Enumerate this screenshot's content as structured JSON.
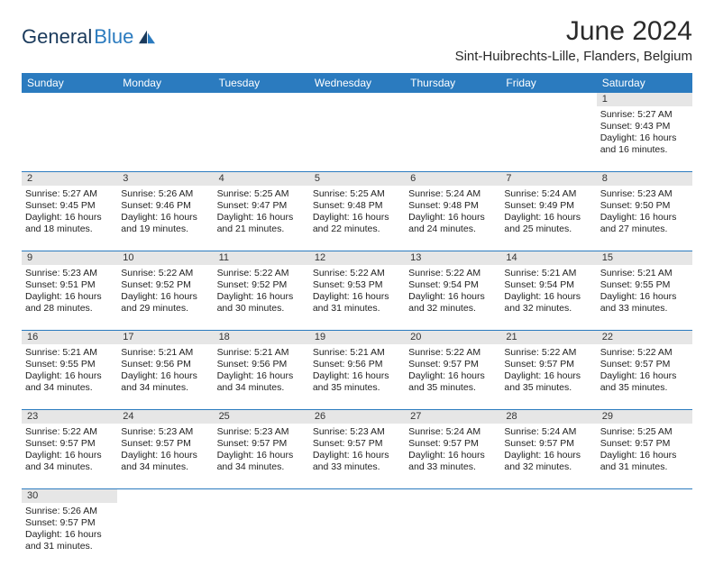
{
  "logo": {
    "part1": "General",
    "part2": "Blue"
  },
  "title": "June 2024",
  "location": "Sint-Huibrechts-Lille, Flanders, Belgium",
  "colors": {
    "header_bg": "#2b7bbf",
    "header_text": "#ffffff",
    "daynum_bg": "#e6e6e6",
    "divider": "#2b7bbf"
  },
  "weekdays": [
    "Sunday",
    "Monday",
    "Tuesday",
    "Wednesday",
    "Thursday",
    "Friday",
    "Saturday"
  ],
  "weeks": [
    [
      {
        "n": "",
        "lines": []
      },
      {
        "n": "",
        "lines": []
      },
      {
        "n": "",
        "lines": []
      },
      {
        "n": "",
        "lines": []
      },
      {
        "n": "",
        "lines": []
      },
      {
        "n": "",
        "lines": []
      },
      {
        "n": "1",
        "lines": [
          "Sunrise: 5:27 AM",
          "Sunset: 9:43 PM",
          "Daylight: 16 hours",
          "and 16 minutes."
        ]
      }
    ],
    [
      {
        "n": "2",
        "lines": [
          "Sunrise: 5:27 AM",
          "Sunset: 9:45 PM",
          "Daylight: 16 hours",
          "and 18 minutes."
        ]
      },
      {
        "n": "3",
        "lines": [
          "Sunrise: 5:26 AM",
          "Sunset: 9:46 PM",
          "Daylight: 16 hours",
          "and 19 minutes."
        ]
      },
      {
        "n": "4",
        "lines": [
          "Sunrise: 5:25 AM",
          "Sunset: 9:47 PM",
          "Daylight: 16 hours",
          "and 21 minutes."
        ]
      },
      {
        "n": "5",
        "lines": [
          "Sunrise: 5:25 AM",
          "Sunset: 9:48 PM",
          "Daylight: 16 hours",
          "and 22 minutes."
        ]
      },
      {
        "n": "6",
        "lines": [
          "Sunrise: 5:24 AM",
          "Sunset: 9:48 PM",
          "Daylight: 16 hours",
          "and 24 minutes."
        ]
      },
      {
        "n": "7",
        "lines": [
          "Sunrise: 5:24 AM",
          "Sunset: 9:49 PM",
          "Daylight: 16 hours",
          "and 25 minutes."
        ]
      },
      {
        "n": "8",
        "lines": [
          "Sunrise: 5:23 AM",
          "Sunset: 9:50 PM",
          "Daylight: 16 hours",
          "and 27 minutes."
        ]
      }
    ],
    [
      {
        "n": "9",
        "lines": [
          "Sunrise: 5:23 AM",
          "Sunset: 9:51 PM",
          "Daylight: 16 hours",
          "and 28 minutes."
        ]
      },
      {
        "n": "10",
        "lines": [
          "Sunrise: 5:22 AM",
          "Sunset: 9:52 PM",
          "Daylight: 16 hours",
          "and 29 minutes."
        ]
      },
      {
        "n": "11",
        "lines": [
          "Sunrise: 5:22 AM",
          "Sunset: 9:52 PM",
          "Daylight: 16 hours",
          "and 30 minutes."
        ]
      },
      {
        "n": "12",
        "lines": [
          "Sunrise: 5:22 AM",
          "Sunset: 9:53 PM",
          "Daylight: 16 hours",
          "and 31 minutes."
        ]
      },
      {
        "n": "13",
        "lines": [
          "Sunrise: 5:22 AM",
          "Sunset: 9:54 PM",
          "Daylight: 16 hours",
          "and 32 minutes."
        ]
      },
      {
        "n": "14",
        "lines": [
          "Sunrise: 5:21 AM",
          "Sunset: 9:54 PM",
          "Daylight: 16 hours",
          "and 32 minutes."
        ]
      },
      {
        "n": "15",
        "lines": [
          "Sunrise: 5:21 AM",
          "Sunset: 9:55 PM",
          "Daylight: 16 hours",
          "and 33 minutes."
        ]
      }
    ],
    [
      {
        "n": "16",
        "lines": [
          "Sunrise: 5:21 AM",
          "Sunset: 9:55 PM",
          "Daylight: 16 hours",
          "and 34 minutes."
        ]
      },
      {
        "n": "17",
        "lines": [
          "Sunrise: 5:21 AM",
          "Sunset: 9:56 PM",
          "Daylight: 16 hours",
          "and 34 minutes."
        ]
      },
      {
        "n": "18",
        "lines": [
          "Sunrise: 5:21 AM",
          "Sunset: 9:56 PM",
          "Daylight: 16 hours",
          "and 34 minutes."
        ]
      },
      {
        "n": "19",
        "lines": [
          "Sunrise: 5:21 AM",
          "Sunset: 9:56 PM",
          "Daylight: 16 hours",
          "and 35 minutes."
        ]
      },
      {
        "n": "20",
        "lines": [
          "Sunrise: 5:22 AM",
          "Sunset: 9:57 PM",
          "Daylight: 16 hours",
          "and 35 minutes."
        ]
      },
      {
        "n": "21",
        "lines": [
          "Sunrise: 5:22 AM",
          "Sunset: 9:57 PM",
          "Daylight: 16 hours",
          "and 35 minutes."
        ]
      },
      {
        "n": "22",
        "lines": [
          "Sunrise: 5:22 AM",
          "Sunset: 9:57 PM",
          "Daylight: 16 hours",
          "and 35 minutes."
        ]
      }
    ],
    [
      {
        "n": "23",
        "lines": [
          "Sunrise: 5:22 AM",
          "Sunset: 9:57 PM",
          "Daylight: 16 hours",
          "and 34 minutes."
        ]
      },
      {
        "n": "24",
        "lines": [
          "Sunrise: 5:23 AM",
          "Sunset: 9:57 PM",
          "Daylight: 16 hours",
          "and 34 minutes."
        ]
      },
      {
        "n": "25",
        "lines": [
          "Sunrise: 5:23 AM",
          "Sunset: 9:57 PM",
          "Daylight: 16 hours",
          "and 34 minutes."
        ]
      },
      {
        "n": "26",
        "lines": [
          "Sunrise: 5:23 AM",
          "Sunset: 9:57 PM",
          "Daylight: 16 hours",
          "and 33 minutes."
        ]
      },
      {
        "n": "27",
        "lines": [
          "Sunrise: 5:24 AM",
          "Sunset: 9:57 PM",
          "Daylight: 16 hours",
          "and 33 minutes."
        ]
      },
      {
        "n": "28",
        "lines": [
          "Sunrise: 5:24 AM",
          "Sunset: 9:57 PM",
          "Daylight: 16 hours",
          "and 32 minutes."
        ]
      },
      {
        "n": "29",
        "lines": [
          "Sunrise: 5:25 AM",
          "Sunset: 9:57 PM",
          "Daylight: 16 hours",
          "and 31 minutes."
        ]
      }
    ],
    [
      {
        "n": "30",
        "lines": [
          "Sunrise: 5:26 AM",
          "Sunset: 9:57 PM",
          "Daylight: 16 hours",
          "and 31 minutes."
        ]
      },
      {
        "n": "",
        "lines": []
      },
      {
        "n": "",
        "lines": []
      },
      {
        "n": "",
        "lines": []
      },
      {
        "n": "",
        "lines": []
      },
      {
        "n": "",
        "lines": []
      },
      {
        "n": "",
        "lines": []
      }
    ]
  ]
}
